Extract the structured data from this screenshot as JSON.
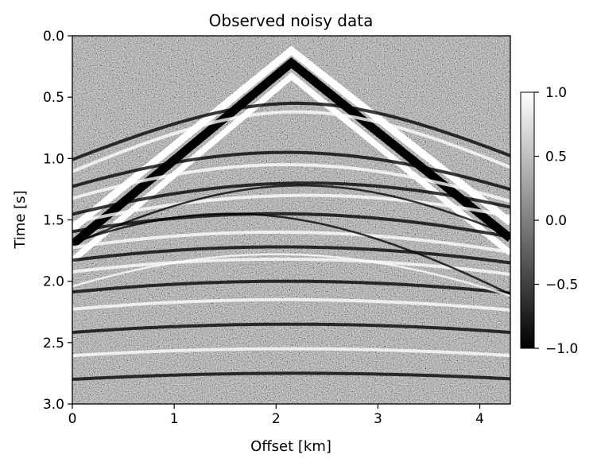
{
  "chart_data": {
    "type": "heatmap",
    "title": "Observed noisy data",
    "xlabel": "Offset [km]",
    "ylabel": "Time [s]",
    "xlim": [
      0,
      4.3
    ],
    "ylim": [
      3.0,
      0.0
    ],
    "x_ticks": [
      0,
      1,
      2,
      3,
      4
    ],
    "x_tick_labels": [
      "0",
      "1",
      "2",
      "3",
      "4"
    ],
    "y_ticks": [
      0.0,
      0.5,
      1.0,
      1.5,
      2.0,
      2.5,
      3.0
    ],
    "y_tick_labels": [
      "0.0",
      "0.5",
      "1.0",
      "1.5",
      "2.0",
      "2.5",
      "3.0"
    ],
    "colormap": "gray",
    "colorbar": {
      "range": [
        -1.0,
        1.0
      ],
      "ticks": [
        1.0,
        0.5,
        0.0,
        -0.5,
        -1.0
      ],
      "tick_labels": [
        "1.0",
        "0.5",
        "0.0",
        "−0.5",
        "−1.0"
      ]
    },
    "events": [
      {
        "kind": "direct-wave",
        "apex_x": 2.15,
        "apex_t": 0.22,
        "t_at_left": 1.7,
        "t_at_right": 1.65,
        "polarity": "black",
        "width_t": 0.07
      },
      {
        "kind": "direct-wave",
        "apex_x": 2.15,
        "apex_t": 0.12,
        "t_at_left": 1.57,
        "t_at_right": 1.52,
        "polarity": "white",
        "width_t": 0.06
      },
      {
        "kind": "direct-wave",
        "apex_x": 2.15,
        "apex_t": 0.33,
        "t_at_left": 1.83,
        "t_at_right": 1.77,
        "polarity": "white",
        "width_t": 0.05
      },
      {
        "kind": "reflection",
        "apex_x": 2.2,
        "apex_t": 0.55,
        "velocity": 2.6,
        "polarity": "black"
      },
      {
        "kind": "reflection",
        "apex_x": 2.2,
        "apex_t": 0.62,
        "velocity": 2.4,
        "polarity": "white"
      },
      {
        "kind": "reflection",
        "apex_x": 2.1,
        "apex_t": 0.95,
        "velocity": 2.7,
        "polarity": "black"
      },
      {
        "kind": "reflection",
        "apex_x": 2.1,
        "apex_t": 1.05,
        "velocity": 2.6,
        "polarity": "white"
      },
      {
        "kind": "reflection",
        "apex_x": 2.3,
        "apex_t": 1.2,
        "velocity": 2.8,
        "polarity": "black"
      },
      {
        "kind": "reflection",
        "apex_x": 2.3,
        "apex_t": 1.3,
        "velocity": 2.9,
        "polarity": "white"
      },
      {
        "kind": "reflection",
        "apex_x": 2.0,
        "apex_t": 1.45,
        "velocity": 3.0,
        "polarity": "black"
      },
      {
        "kind": "reflection",
        "apex_x": 2.0,
        "apex_t": 1.6,
        "velocity": 3.1,
        "polarity": "white"
      },
      {
        "kind": "reflection",
        "apex_x": 2.05,
        "apex_t": 1.72,
        "velocity": 3.3,
        "polarity": "black"
      },
      {
        "kind": "reflection",
        "apex_x": 2.05,
        "apex_t": 1.82,
        "velocity": 3.3,
        "polarity": "white"
      },
      {
        "kind": "reflection",
        "apex_x": 2.1,
        "apex_t": 2.0,
        "velocity": 3.5,
        "polarity": "black"
      },
      {
        "kind": "reflection",
        "apex_x": 2.1,
        "apex_t": 2.15,
        "velocity": 3.6,
        "polarity": "white"
      },
      {
        "kind": "reflection",
        "apex_x": 2.15,
        "apex_t": 2.35,
        "velocity": 3.8,
        "polarity": "black"
      },
      {
        "kind": "reflection",
        "apex_x": 2.15,
        "apex_t": 2.55,
        "velocity": 4.0,
        "polarity": "white"
      },
      {
        "kind": "reflection",
        "apex_x": 2.2,
        "apex_t": 2.75,
        "velocity": 4.2,
        "polarity": "black"
      },
      {
        "kind": "diffraction",
        "apex_x": 1.55,
        "apex_t": 1.45,
        "velocity": 1.8,
        "polarity": "black"
      },
      {
        "kind": "diffraction",
        "apex_x": 2.25,
        "apex_t": 1.22,
        "velocity": 1.9,
        "polarity": "black"
      },
      {
        "kind": "diffraction",
        "apex_x": 2.0,
        "apex_t": 1.78,
        "velocity": 2.0,
        "polarity": "white"
      }
    ],
    "background": "random noise, grey"
  }
}
